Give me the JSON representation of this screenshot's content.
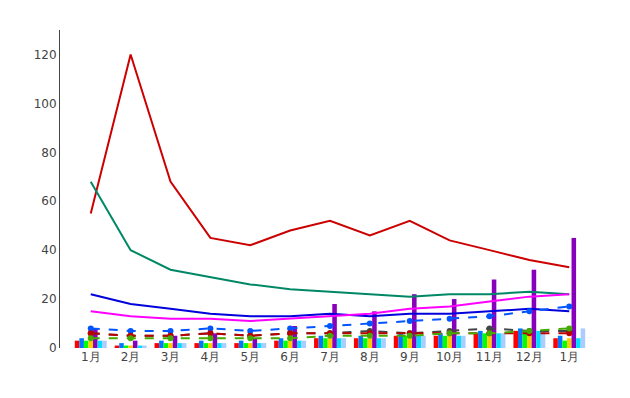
{
  "chart_data": {
    "type": "bar",
    "categories": [
      "1月",
      "2月",
      "3月",
      "4月",
      "5月",
      "6月",
      "7月",
      "8月",
      "9月",
      "10月",
      "11月",
      "12月",
      "1月"
    ],
    "series": [
      {
        "type": "bar",
        "color": "#ff0000",
        "values": [
          3,
          1,
          2,
          2,
          2,
          3,
          4,
          4,
          5,
          5,
          6,
          7,
          4
        ]
      },
      {
        "type": "bar",
        "color": "#0077ff",
        "values": [
          4,
          2,
          3,
          3,
          3,
          4,
          5,
          5,
          6,
          6,
          7,
          8,
          5
        ]
      },
      {
        "type": "bar",
        "color": "#00ff00",
        "values": [
          3,
          1,
          2,
          2,
          2,
          3,
          4,
          4,
          5,
          5,
          6,
          7,
          3
        ]
      },
      {
        "type": "bar",
        "color": "#ffcc00",
        "values": [
          3,
          1,
          2,
          2,
          2,
          3,
          4,
          4,
          5,
          5,
          6,
          7,
          4
        ]
      },
      {
        "type": "bar",
        "color": "#8800bb",
        "values": [
          8,
          3,
          5,
          6,
          4,
          9,
          18,
          15,
          22,
          20,
          28,
          32,
          45
        ]
      },
      {
        "type": "bar",
        "color": "#00ddff",
        "values": [
          3,
          1,
          2,
          2,
          2,
          3,
          4,
          4,
          5,
          5,
          6,
          7,
          4
        ]
      },
      {
        "type": "bar",
        "color": "#aaccff",
        "values": [
          3,
          1,
          2,
          2,
          2,
          3,
          4,
          4,
          5,
          5,
          6,
          7,
          8
        ]
      },
      {
        "type": "line",
        "color": "#cc0000",
        "line_style": "solid",
        "values": [
          55,
          120,
          68,
          45,
          42,
          48,
          52,
          46,
          52,
          44,
          40,
          36,
          33
        ]
      },
      {
        "type": "line",
        "color": "#008866",
        "line_style": "solid",
        "values": [
          68,
          40,
          32,
          29,
          26,
          24,
          23,
          22,
          21,
          22,
          22,
          23,
          22
        ]
      },
      {
        "type": "line",
        "color": "#0000dd",
        "line_style": "solid",
        "values": [
          22,
          18,
          16,
          14,
          13,
          13,
          14,
          13,
          14,
          14,
          15,
          16,
          15
        ]
      },
      {
        "type": "line",
        "color": "#ff00ff",
        "line_style": "solid",
        "values": [
          15,
          13,
          12,
          12,
          11,
          12,
          13,
          14,
          16,
          17,
          19,
          21,
          22
        ]
      },
      {
        "type": "line",
        "color": "#444444",
        "line_style": "dashed",
        "marker": "circle",
        "values": [
          6,
          5,
          5,
          6,
          5,
          6,
          6,
          7,
          6,
          7,
          8,
          7,
          7
        ]
      },
      {
        "type": "line",
        "color": "#0055ff",
        "line_style": "dashed",
        "marker": "circle",
        "values": [
          8,
          7,
          7,
          8,
          7,
          8,
          9,
          10,
          11,
          12,
          13,
          15,
          17
        ]
      },
      {
        "type": "line",
        "color": "#bb0000",
        "line_style": "dashed",
        "marker": "circle",
        "values": [
          6,
          5,
          5,
          6,
          5,
          6,
          6,
          6,
          6,
          6,
          6,
          6,
          6
        ]
      },
      {
        "type": "line",
        "color": "#44aa00",
        "line_style": "dashed",
        "marker": "circle",
        "values": [
          4,
          4,
          4,
          4,
          4,
          4,
          5,
          5,
          5,
          6,
          6,
          7,
          8
        ]
      }
    ],
    "ylim": [
      0,
      130
    ],
    "yticks": [
      0,
      20,
      40,
      60,
      80,
      100,
      120
    ],
    "grid": false
  }
}
